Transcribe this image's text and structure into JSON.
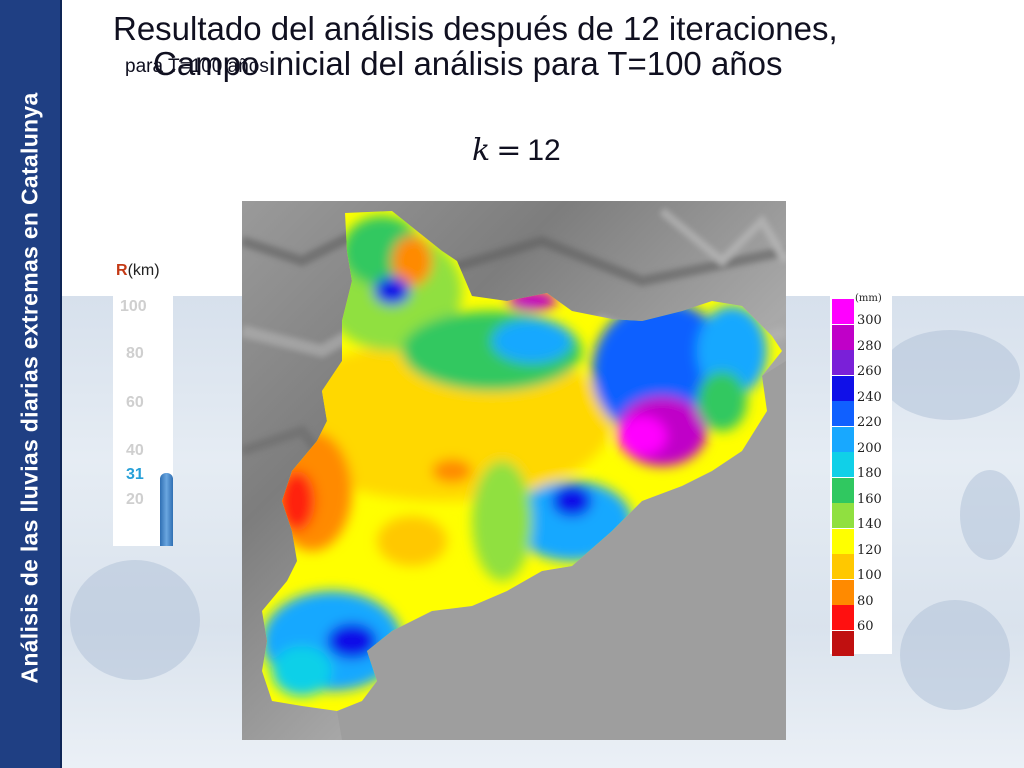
{
  "sidebar": {
    "text": "Análisis de las lluvias diarias extremas en Catalunya"
  },
  "title": {
    "line1": "Resultado del análisis después de 12 iteraciones,",
    "line2": "Campo inicial del análisis para T=100 años",
    "overlap_small": "para T=100 años"
  },
  "formula": {
    "var": "k",
    "eq": "=",
    "value": "12"
  },
  "radius_scale": {
    "label_symbol": "R",
    "label_unit": "(km)",
    "ticks": [
      "100",
      "80",
      "60",
      "40",
      "20"
    ],
    "current": "31",
    "bar_color": "#4a86c8"
  },
  "legend": {
    "unit": "(mm)",
    "items": [
      {
        "label": "300",
        "color": "#ff00ff"
      },
      {
        "label": "280",
        "color": "#c000c8"
      },
      {
        "label": "260",
        "color": "#7a20d8"
      },
      {
        "label": "240",
        "color": "#1010e8"
      },
      {
        "label": "220",
        "color": "#1060ff"
      },
      {
        "label": "200",
        "color": "#18a8ff"
      },
      {
        "label": "180",
        "color": "#10d0e8"
      },
      {
        "label": "160",
        "color": "#30c860"
      },
      {
        "label": "140",
        "color": "#90e040"
      },
      {
        "label": "120",
        "color": "#ffff00"
      },
      {
        "label": "100",
        "color": "#ffc800"
      },
      {
        "label": "80",
        "color": "#ff8a00"
      },
      {
        "label": "60",
        "color": "#ff1010"
      },
      {
        "label": "",
        "color": "#c01010"
      }
    ]
  },
  "map": {
    "sea_color": "#9e9e9e"
  }
}
